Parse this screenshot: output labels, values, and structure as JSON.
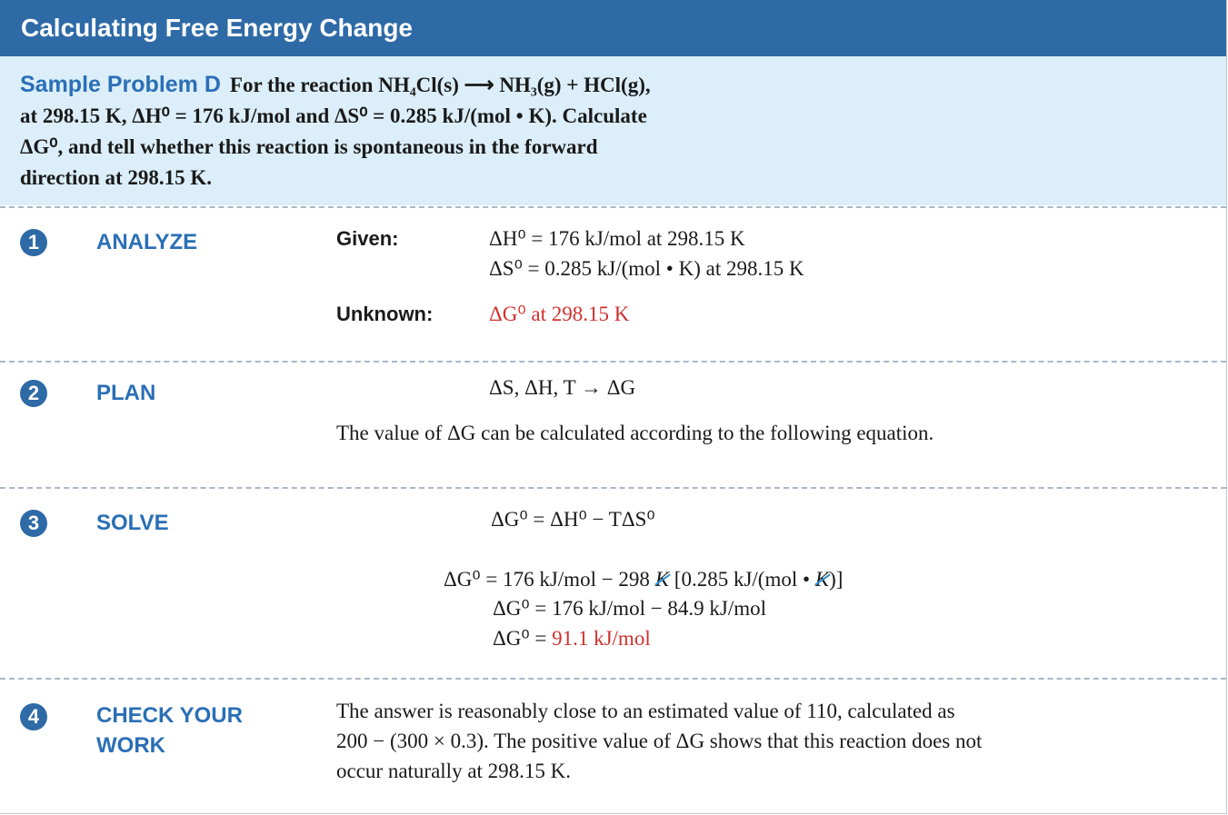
{
  "header": {
    "title": "Calculating Free Energy Change"
  },
  "problem": {
    "label": "Sample Problem D",
    "text_line1": "For the reaction NH₄Cl(s) ⟶ NH₃(g) + HCl(g),",
    "text_line2": "at 298.15 K, ΔH⁰ = 176 kJ/mol and ΔS⁰ = 0.285 kJ/(mol • K). Calculate",
    "text_line3": "ΔG⁰, and tell whether this reaction is spontaneous in the forward",
    "text_line4": "direction at 298.15 K."
  },
  "steps": {
    "analyze": {
      "number": "1",
      "title": "ANALYZE",
      "given_label": "Given:",
      "given_line1": "ΔH⁰ = 176 kJ/mol at 298.15 K",
      "given_line2": "ΔS⁰ = 0.285 kJ/(mol • K) at 298.15 K",
      "unknown_label": "Unknown:",
      "unknown_value": "ΔG⁰ at 298.15 K"
    },
    "plan": {
      "number": "2",
      "title": "PLAN",
      "relation": "ΔS, ΔH, T → ΔG",
      "text": "The value of ΔG can be calculated according to the following equation."
    },
    "solve": {
      "number": "3",
      "title": "SOLVE",
      "equation": "ΔG⁰ = ΔH⁰ − TΔS⁰",
      "line1_a": "ΔG⁰ = 176 kJ/mol − 298 ",
      "line1_k1": "K",
      "line1_b": " [0.285 kJ/(mol • ",
      "line1_k2": "K",
      "line1_c": ")]",
      "line2": "ΔG⁰ = 176 kJ/mol − 84.9 kJ/mol",
      "line3_prefix": "ΔG⁰ = ",
      "line3_value": "91.1 kJ/mol"
    },
    "check": {
      "number": "4",
      "title_line1": "CHECK YOUR",
      "title_line2": "WORK",
      "text_line1": "The answer is reasonably close to an estimated value of 110, calculated as",
      "text_line2": "200 − (300 × 0.3). The positive value of ΔG shows that this reaction does not",
      "text_line3": "occur naturally at 298.15 K."
    }
  },
  "colors": {
    "header_bg": "#2e6aa6",
    "problem_bg": "#dbeef9",
    "accent_blue": "#2a6fb6",
    "answer_red": "#d0312d"
  }
}
